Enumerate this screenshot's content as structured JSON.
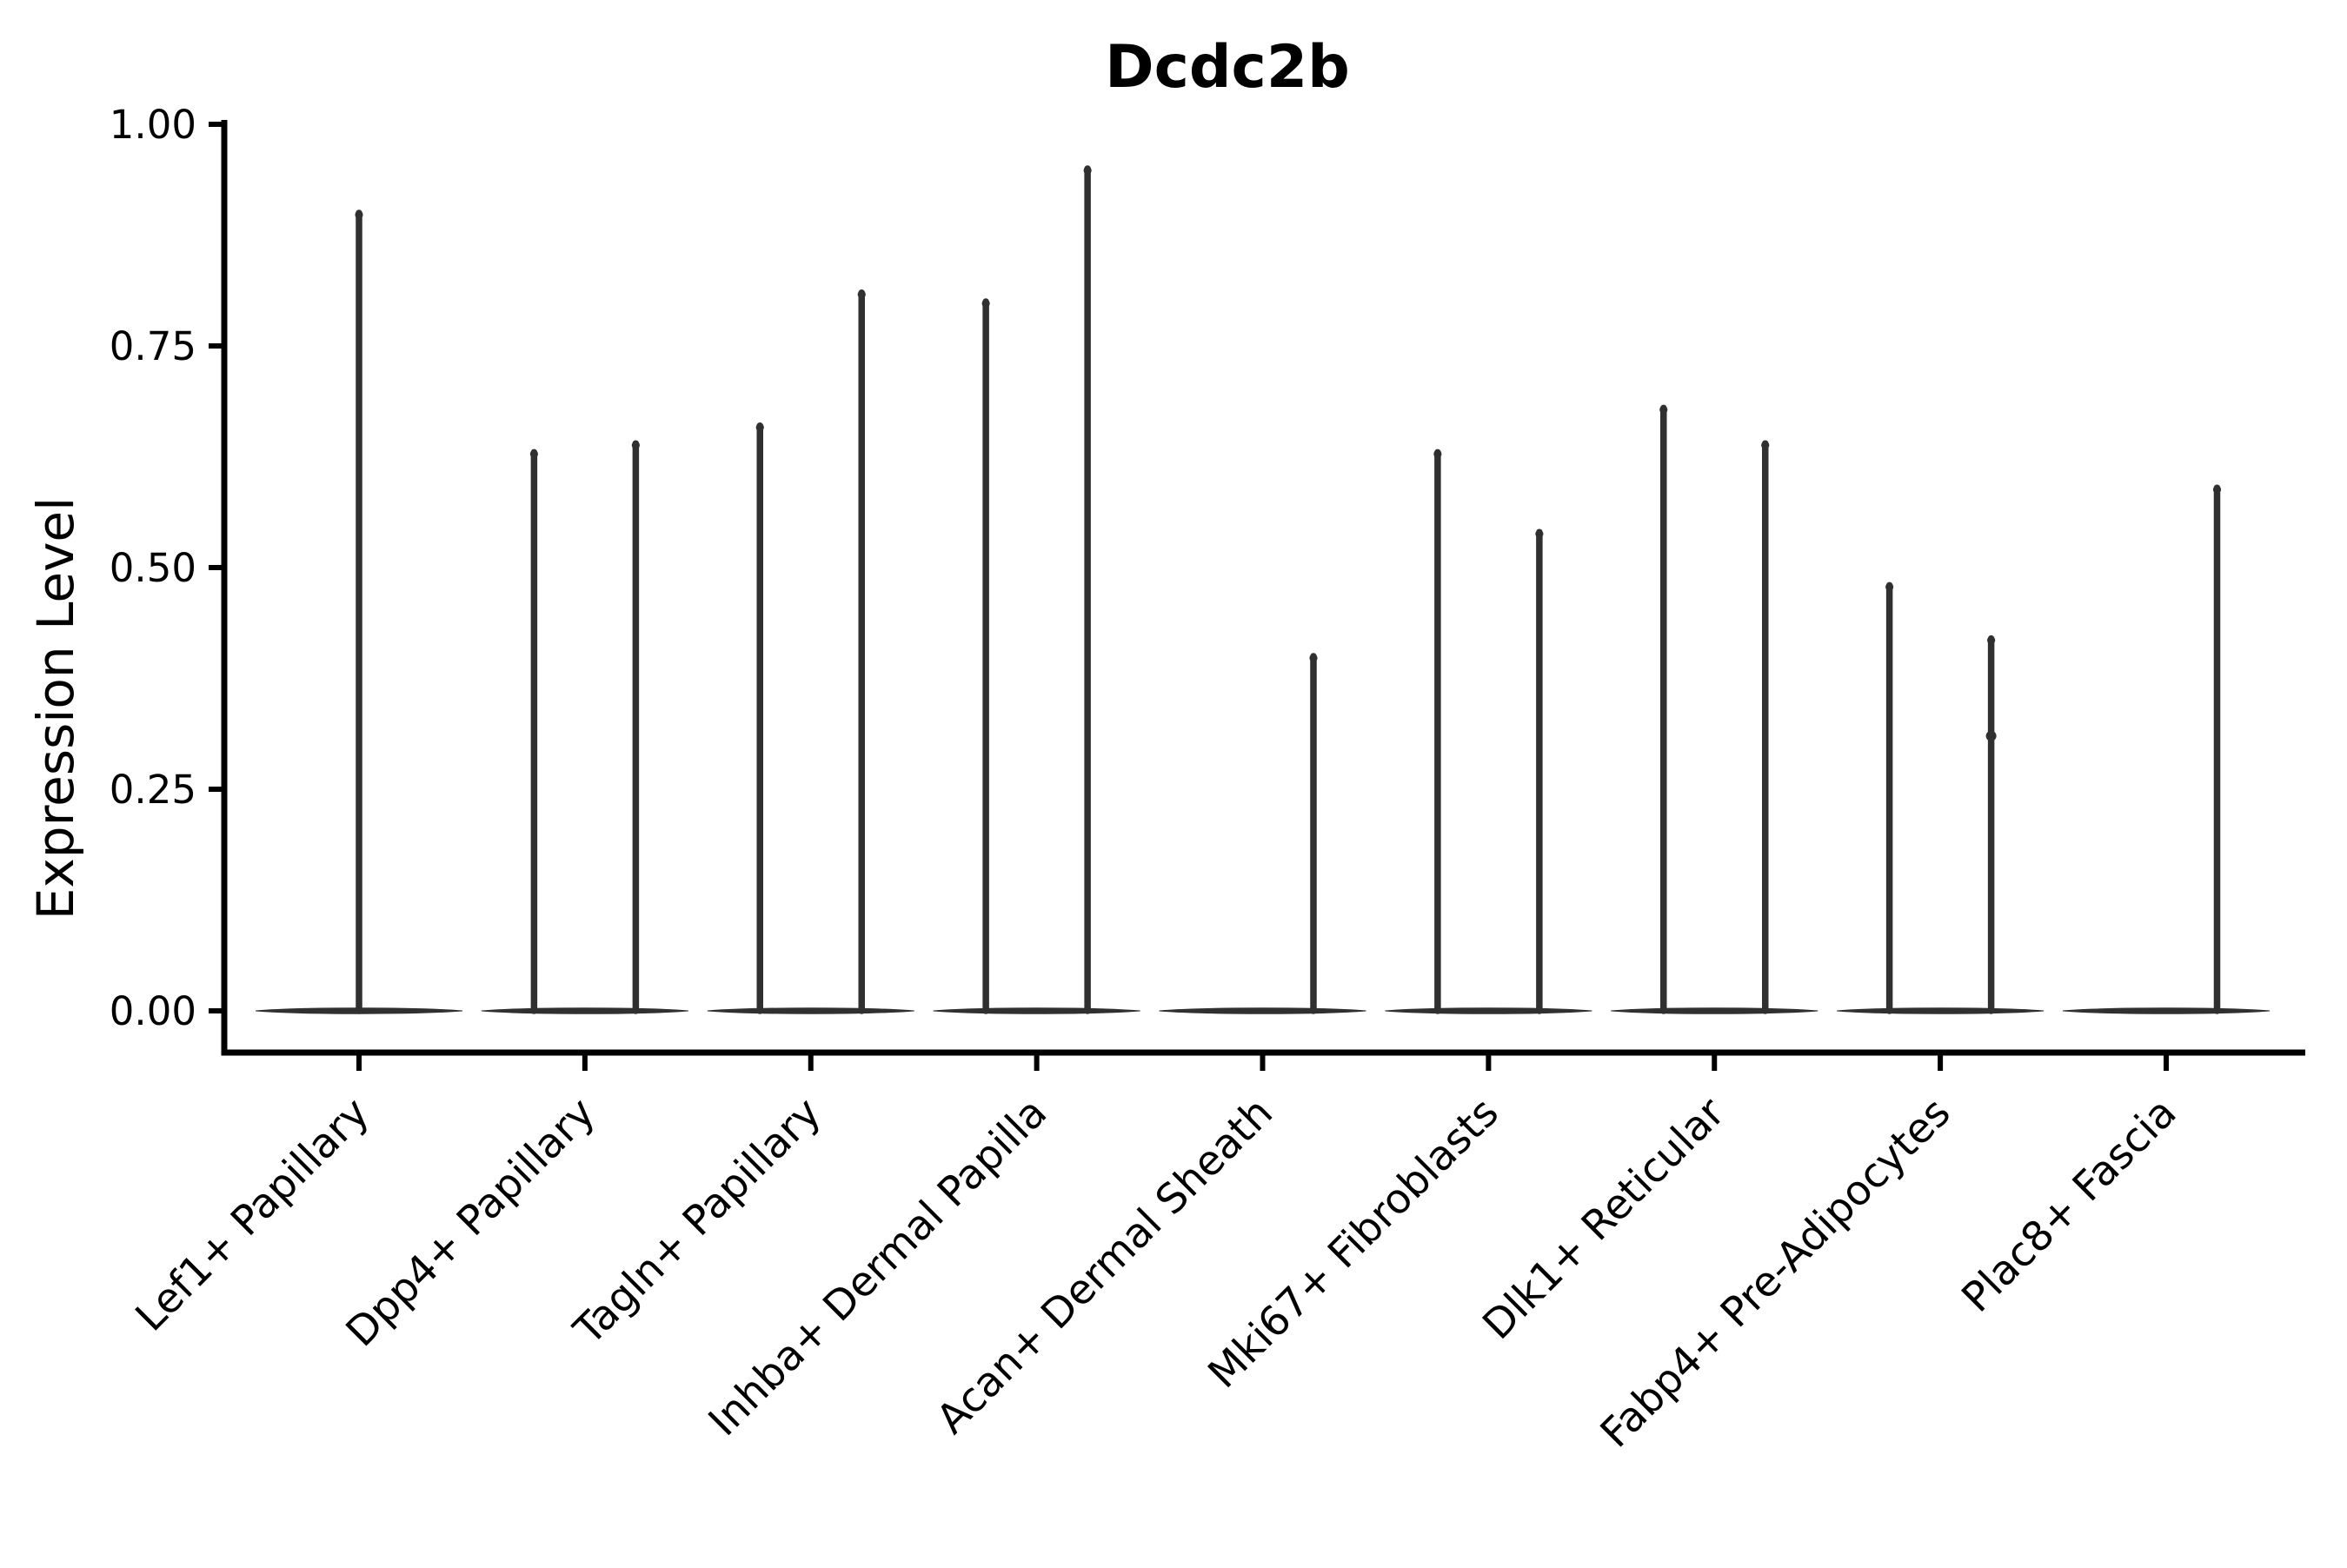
{
  "figure": {
    "title": "Dcdc2b",
    "ylabel": "Expression Level",
    "background_color": "#ffffff",
    "axis_color": "#000000",
    "violin_color": "#303030"
  },
  "chart_data": {
    "type": "violin",
    "title": "Dcdc2b",
    "xlabel": "",
    "ylabel": "Expression Level",
    "ylim": [
      0.0,
      1.0
    ],
    "ytick_values": [
      0.0,
      0.25,
      0.5,
      0.75,
      1.0
    ],
    "ytick_labels": [
      "0.00",
      "0.25",
      "0.50",
      "0.75",
      "1.00"
    ],
    "grid": false,
    "legend": "none",
    "xtick_rotation_degrees": 45,
    "categories": [
      "Lef1+ Papillary",
      "Dpp4+ Papillary",
      "Tagln+ Papillary",
      "Inhba+ Dermal Papilla",
      "Acan+ Dermal Sheath",
      "Mki67+ Fibroblasts",
      "Dlk1+ Reticular",
      "Fabp4+ Pre-Adipocytes",
      "Plac8+ Fascia"
    ],
    "violins": [
      {
        "category": "Lef1+ Papillary",
        "baseline_value": 0.0,
        "spikes": [
          {
            "offset": 0.0,
            "max": 0.9
          }
        ]
      },
      {
        "category": "Dpp4+ Papillary",
        "baseline_value": 0.0,
        "spikes": [
          {
            "offset": -0.225,
            "max": 0.63
          },
          {
            "offset": 0.225,
            "max": 0.64
          }
        ]
      },
      {
        "category": "Tagln+ Papillary",
        "baseline_value": 0.0,
        "spikes": [
          {
            "offset": -0.225,
            "max": 0.66
          },
          {
            "offset": 0.225,
            "max": 0.81
          }
        ]
      },
      {
        "category": "Inhba+ Dermal Papilla",
        "baseline_value": 0.0,
        "spikes": [
          {
            "offset": -0.225,
            "max": 0.8
          },
          {
            "offset": 0.225,
            "max": 0.95
          }
        ]
      },
      {
        "category": "Acan+ Dermal Sheath",
        "baseline_value": 0.0,
        "spikes": [
          {
            "offset": 0.225,
            "max": 0.4
          }
        ]
      },
      {
        "category": "Mki67+ Fibroblasts",
        "baseline_value": 0.0,
        "spikes": [
          {
            "offset": -0.225,
            "max": 0.63
          },
          {
            "offset": 0.225,
            "max": 0.54
          }
        ]
      },
      {
        "category": "Dlk1+ Reticular",
        "baseline_value": 0.0,
        "spikes": [
          {
            "offset": -0.225,
            "max": 0.68
          },
          {
            "offset": 0.225,
            "max": 0.64
          }
        ]
      },
      {
        "category": "Fabp4+ Pre-Adipocytes",
        "baseline_value": 0.0,
        "spikes": [
          {
            "offset": -0.225,
            "max": 0.48
          },
          {
            "offset": 0.225,
            "max": 0.42,
            "bump_at": 0.31
          }
        ]
      },
      {
        "category": "Plac8+ Fascia",
        "baseline_value": 0.0,
        "spikes": [
          {
            "offset": 0.225,
            "max": 0.59
          }
        ]
      }
    ]
  }
}
